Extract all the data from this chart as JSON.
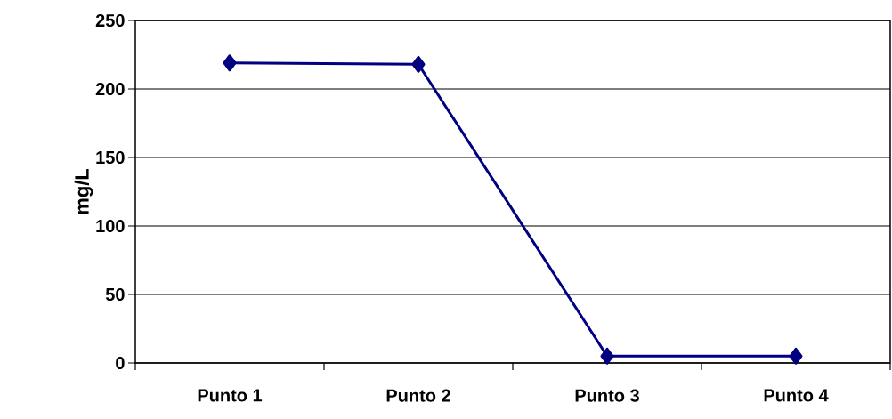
{
  "chart_data": {
    "type": "line",
    "ylabel": "mg/L",
    "categories": [
      "Punto 1",
      "Punto 2",
      "Punto 3",
      "Punto 4"
    ],
    "series": [
      {
        "color": "#000080",
        "values": [
          219,
          218,
          5,
          5
        ]
      }
    ],
    "ylim": [
      0,
      250
    ],
    "yticks": [
      0,
      50,
      100,
      150,
      200,
      250
    ],
    "grid": "y",
    "marker": "diamond",
    "line_style": "solid"
  }
}
